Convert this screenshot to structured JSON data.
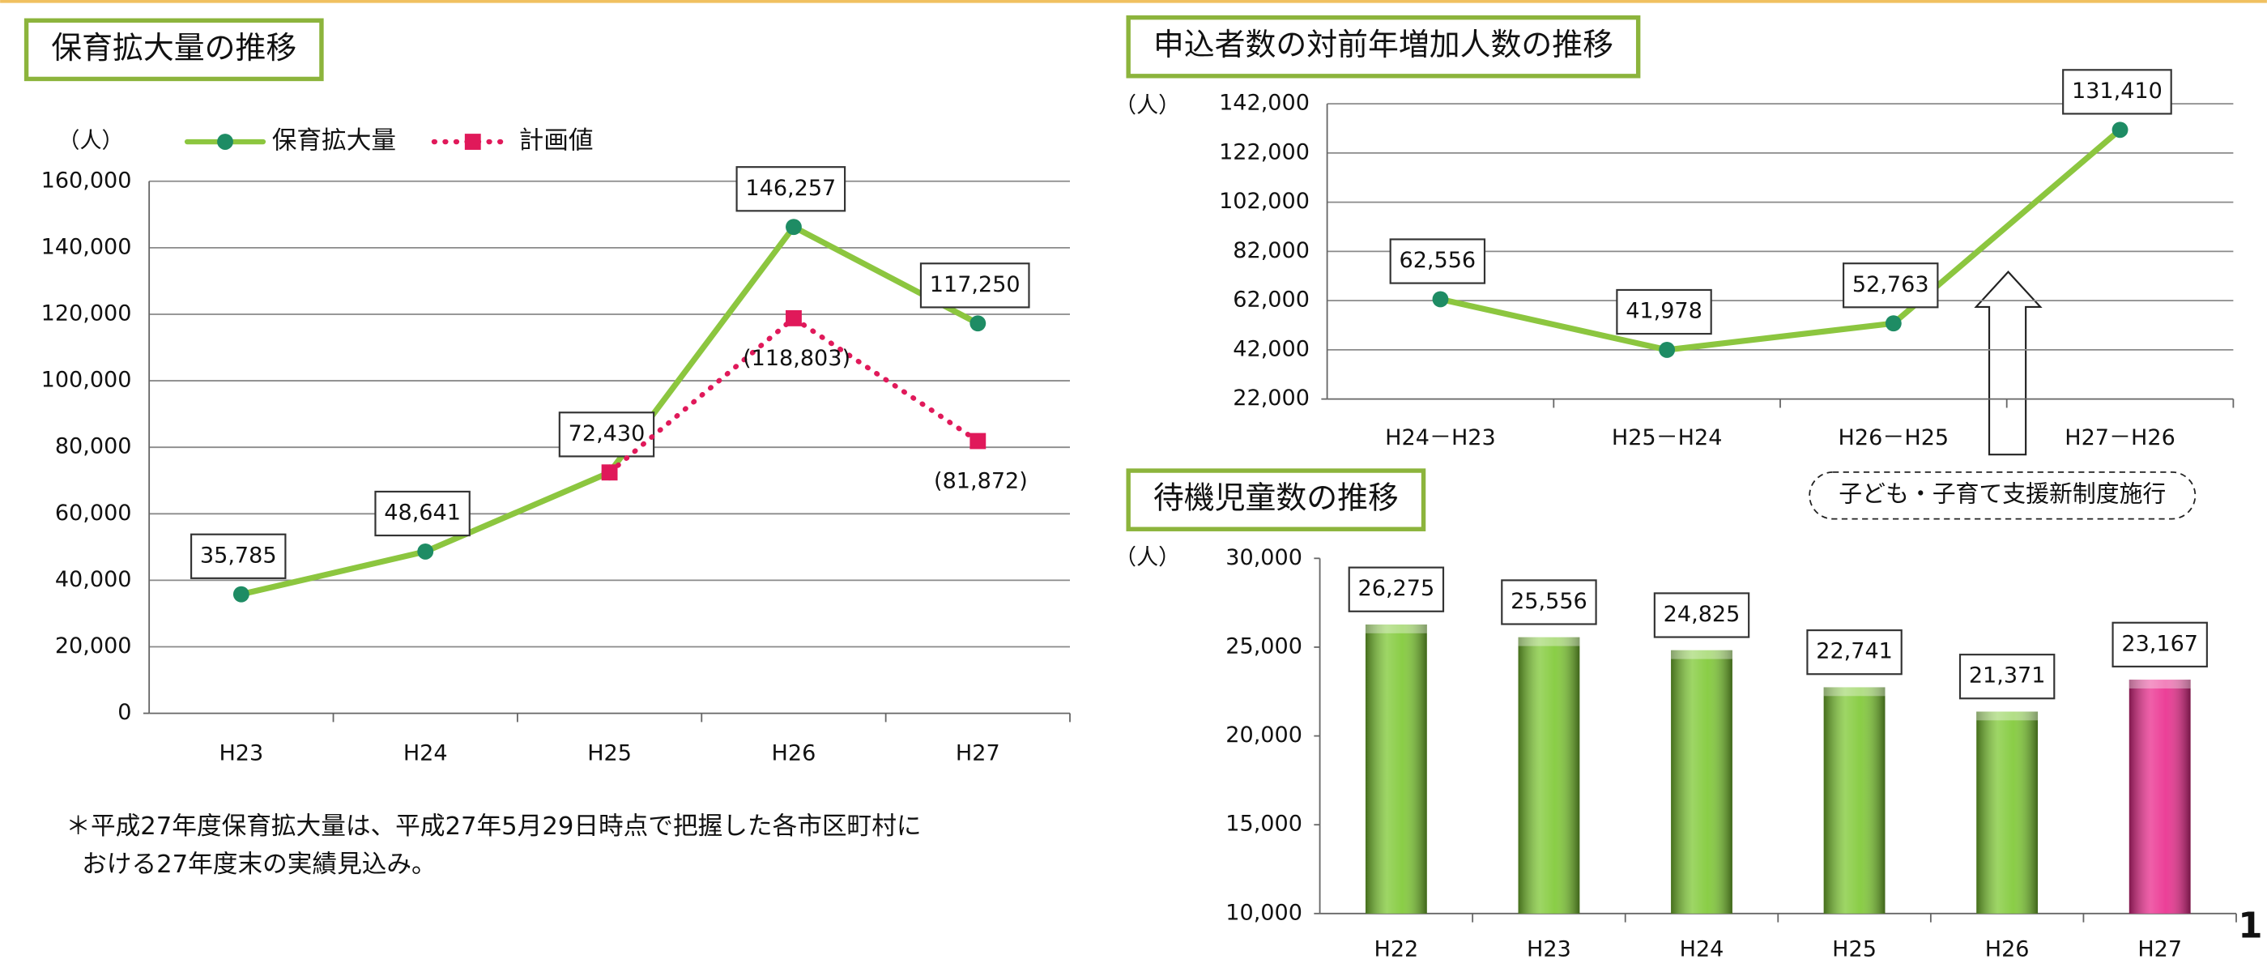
{
  "chart_data": [
    {
      "type": "line",
      "title": "保育拡大量の推移",
      "y_unit": "（人）",
      "categories": [
        "H23",
        "H24",
        "H25",
        "H26",
        "H27"
      ],
      "series": [
        {
          "name": "保育拡大量",
          "color": "#8cc63f",
          "marker": "circle",
          "marker_color": "#1e8c64",
          "label_position": "above",
          "values": [
            35785,
            48641,
            72430,
            146257,
            117250
          ],
          "value_labels": [
            "35,785",
            "48,641",
            "72,430",
            "146,257",
            "117,250"
          ]
        },
        {
          "name": "計画値",
          "color": "#e0195a",
          "marker": "square",
          "marker_color": "#e0195a",
          "line_style": "dotted",
          "label_position": "below",
          "values": [
            null,
            null,
            72430,
            118803,
            81872
          ],
          "value_labels": [
            null,
            null,
            null,
            "(118,803)",
            "(81,872)"
          ]
        }
      ],
      "ylim": [
        0,
        160000
      ],
      "yticks": [
        0,
        {
          "value": 20000,
          "label": "20,000"
        },
        {
          "value": 40000,
          "label": "40,000"
        },
        {
          "value": 60000,
          "label": "60,000"
        },
        {
          "value": 80000,
          "label": "80,000"
        },
        {
          "value": 100000,
          "label": "100,000"
        },
        {
          "value": 120000,
          "label": "120,000"
        },
        {
          "value": 140000,
          "label": "140,000"
        },
        {
          "value": 160000,
          "label": "160,000"
        }
      ],
      "grid": true,
      "legend": "top",
      "note": [
        "＊平成27年度保育拡大量は、平成27年5月29日時点で把握した各市区町村に",
        "おける27年度末の実績見込み。"
      ]
    },
    {
      "type": "line",
      "title": "申込者数の対前年増加人数の推移",
      "y_unit": "（人）",
      "categories": [
        "H24－H23",
        "H25－H24",
        "H26－H25",
        "H27－H26"
      ],
      "color": "#8cc63f",
      "marker": "circle",
      "marker_color": "#1e8c64",
      "values": [
        62556,
        41978,
        52763,
        131410
      ],
      "value_labels": [
        "62,556",
        "41,978",
        "52,763",
        "131,410"
      ],
      "ylim": [
        22000,
        142000
      ],
      "yticks": [
        {
          "value": 22000,
          "label": "22,000"
        },
        {
          "value": 42000,
          "label": "42,000"
        },
        {
          "value": 62000,
          "label": "62,000"
        },
        {
          "value": 82000,
          "label": "82,000"
        },
        {
          "value": 102000,
          "label": "102,000"
        },
        {
          "value": 122000,
          "label": "122,000"
        },
        {
          "value": 142000,
          "label": "142,000"
        }
      ],
      "grid": true,
      "annotation": "子ども・子育て支援新制度施行"
    },
    {
      "type": "bar",
      "title": "待機児童数の推移",
      "y_unit": "（人）",
      "categories": [
        "H22",
        "H23",
        "H24",
        "H25",
        "H26",
        "H27"
      ],
      "values": [
        26275,
        25556,
        24825,
        22741,
        21371,
        23167
      ],
      "value_labels": [
        "26,275",
        "25,556",
        "24,825",
        "22,741",
        "21,371",
        "23,167"
      ],
      "colors": [
        "#7dc832",
        "#7dc832",
        "#7dc832",
        "#7dc832",
        "#7dc832",
        "#ea2a8c"
      ],
      "ylim": [
        10000,
        30000
      ],
      "yticks": [
        {
          "value": 10000,
          "label": "10,000"
        },
        {
          "value": 15000,
          "label": "15,000"
        },
        {
          "value": 20000,
          "label": "20,000"
        },
        {
          "value": 25000,
          "label": "25,000"
        },
        {
          "value": 30000,
          "label": "30,000"
        }
      ],
      "grid": false
    }
  ],
  "page_number": "1"
}
